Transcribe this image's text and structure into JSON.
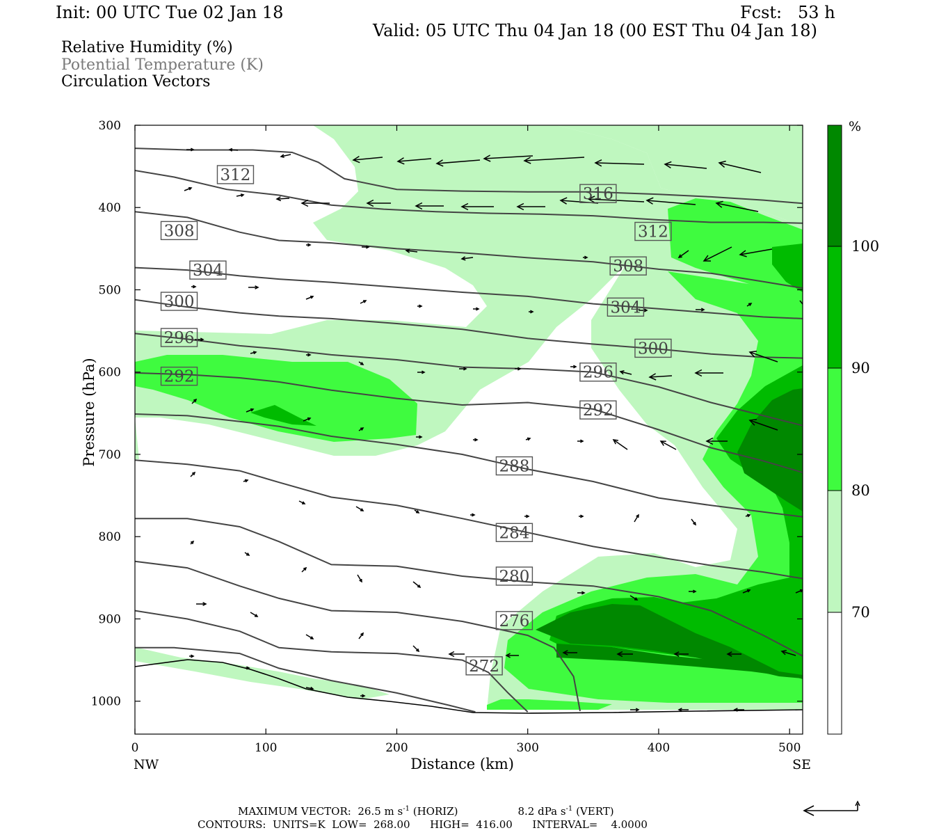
{
  "header": {
    "init": "Init: 00 UTC Tue 02 Jan 18",
    "fcst": "Fcst:   53 h",
    "valid": "Valid: 05 UTC Thu 04 Jan 18 (00 EST Thu 04 Jan 18)"
  },
  "legend_lines": {
    "rh": "Relative Humidity (%)",
    "theta": "Potential Temperature (K)",
    "vectors": "Circulation Vectors"
  },
  "footer": {
    "max_vector_prefix": "MAXIMUM VECTOR:  26.5 m s",
    "horiz_sup": "-1",
    "horiz_suffix": " (HORIZ)",
    "vert_prefix": "8.2 dPa s",
    "vert_sup": "-1",
    "vert_suffix": " (VERT)",
    "contours": "CONTOURS:  UNITS=K  LOW=  268.00      HIGH=  416.00      INTERVAL=    4.0000"
  },
  "colors": {
    "rh_70": "#bff7bf",
    "rh_80": "#3ffb3f",
    "rh_90": "#00bb00",
    "rh_100": "#008800",
    "contour": "#444444"
  },
  "chart_data": {
    "type": "cross-section",
    "xlabel": "Distance (km)",
    "ylabel": "Pressure (hPa)",
    "xlim": [
      0,
      510
    ],
    "ylim": [
      1040,
      300
    ],
    "x_ticks": [
      "0",
      "100",
      "200",
      "300",
      "400",
      "500"
    ],
    "y_ticks": [
      "300",
      "400",
      "500",
      "600",
      "700",
      "800",
      "900",
      "1000"
    ],
    "x_endpoints": {
      "left": "NW",
      "right": "SE"
    },
    "colorbar": {
      "unit": "%",
      "levels": [
        "70",
        "80",
        "90",
        "100"
      ]
    },
    "theta_contours": [
      {
        "label": "312",
        "points": [
          [
            0,
            355
          ],
          [
            30,
            363
          ],
          [
            70,
            378
          ],
          [
            110,
            385
          ],
          [
            150,
            397
          ],
          [
            190,
            402
          ],
          [
            230,
            405
          ],
          [
            270,
            407
          ],
          [
            310,
            408
          ],
          [
            350,
            410
          ],
          [
            400,
            415
          ],
          [
            440,
            418
          ],
          [
            480,
            418
          ],
          [
            510,
            419
          ]
        ],
        "label_at": [
          64,
          360
        ]
      },
      {
        "label": "316",
        "points": [
          [
            0,
            328
          ],
          [
            40,
            330
          ],
          [
            90,
            330
          ],
          [
            120,
            333
          ],
          [
            140,
            345
          ],
          [
            160,
            365
          ],
          [
            200,
            378
          ],
          [
            250,
            380
          ],
          [
            300,
            381
          ],
          [
            350,
            381
          ],
          [
            400,
            384
          ],
          [
            440,
            387
          ],
          [
            480,
            391
          ],
          [
            510,
            395
          ]
        ],
        "label_at": [
          341,
          383
        ]
      },
      {
        "label": "308",
        "points": [
          [
            0,
            405
          ],
          [
            40,
            412
          ],
          [
            80,
            430
          ],
          [
            110,
            440
          ],
          [
            150,
            443
          ],
          [
            200,
            450
          ],
          [
            250,
            455
          ],
          [
            300,
            461
          ],
          [
            350,
            466
          ],
          [
            400,
            475
          ],
          [
            440,
            480
          ],
          [
            480,
            490
          ],
          [
            510,
            498
          ]
        ],
        "label_at": [
          21,
          428
        ]
      },
      {
        "label": "308",
        "points": [
          [
            0,
            405
          ],
          [
            40,
            412
          ],
          [
            80,
            430
          ],
          [
            110,
            440
          ],
          [
            150,
            443
          ],
          [
            200,
            450
          ],
          [
            250,
            455
          ],
          [
            300,
            461
          ],
          [
            350,
            466
          ],
          [
            400,
            475
          ],
          [
            440,
            480
          ],
          [
            480,
            490
          ],
          [
            510,
            498
          ]
        ],
        "label_at": [
          364,
          471
        ]
      },
      {
        "label": "312",
        "points": [
          [
            0,
            405
          ],
          [
            0,
            405
          ]
        ],
        "label_at": [
          383,
          429
        ]
      },
      {
        "label": "304",
        "points": [
          [
            0,
            473
          ],
          [
            40,
            476
          ],
          [
            80,
            483
          ],
          [
            110,
            487
          ],
          [
            150,
            491
          ],
          [
            200,
            497
          ],
          [
            250,
            503
          ],
          [
            300,
            508
          ],
          [
            350,
            517
          ],
          [
            400,
            523
          ],
          [
            440,
            528
          ],
          [
            480,
            533
          ],
          [
            510,
            535
          ]
        ],
        "label_at": [
          43,
          476
        ]
      },
      {
        "label": "304",
        "points": [
          [
            0,
            473
          ],
          [
            0,
            473
          ]
        ],
        "label_at": [
          362,
          521
        ]
      },
      {
        "label": "300",
        "points": [
          [
            0,
            512
          ],
          [
            40,
            521
          ],
          [
            80,
            528
          ],
          [
            110,
            532
          ],
          [
            150,
            535
          ],
          [
            200,
            541
          ],
          [
            250,
            548
          ],
          [
            300,
            559
          ],
          [
            350,
            566
          ],
          [
            400,
            572
          ],
          [
            440,
            578
          ],
          [
            480,
            582
          ],
          [
            510,
            583
          ]
        ],
        "label_at": [
          21,
          514
        ]
      },
      {
        "label": "300",
        "points": [
          [
            0,
            512
          ],
          [
            0,
            512
          ]
        ],
        "label_at": [
          383,
          571
        ]
      },
      {
        "label": "296",
        "points": [
          [
            0,
            553
          ],
          [
            40,
            560
          ],
          [
            80,
            568
          ],
          [
            110,
            572
          ],
          [
            150,
            579
          ],
          [
            200,
            585
          ],
          [
            250,
            594
          ],
          [
            300,
            596
          ],
          [
            350,
            600
          ],
          [
            400,
            618
          ],
          [
            440,
            637
          ],
          [
            480,
            653
          ],
          [
            510,
            665
          ]
        ],
        "label_at": [
          21,
          558
        ]
      },
      {
        "label": "296",
        "points": [
          [
            0,
            553
          ],
          [
            0,
            553
          ]
        ],
        "label_at": [
          341,
          600
        ]
      },
      {
        "label": "292",
        "points": [
          [
            0,
            601
          ],
          [
            40,
            603
          ],
          [
            80,
            607
          ],
          [
            110,
            612
          ],
          [
            150,
            622
          ],
          [
            200,
            632
          ],
          [
            250,
            640
          ],
          [
            300,
            637
          ],
          [
            350,
            645
          ],
          [
            400,
            670
          ],
          [
            440,
            692
          ],
          [
            480,
            708
          ],
          [
            510,
            722
          ]
        ],
        "label_at": [
          21,
          605
        ]
      },
      {
        "label": "292",
        "points": [
          [
            0,
            601
          ],
          [
            0,
            601
          ]
        ],
        "label_at": [
          341,
          646
        ]
      },
      {
        "label": "288",
        "points": [
          [
            0,
            651
          ],
          [
            40,
            653
          ],
          [
            80,
            660
          ],
          [
            110,
            666
          ],
          [
            150,
            678
          ],
          [
            200,
            688
          ],
          [
            250,
            700
          ],
          [
            300,
            718
          ],
          [
            350,
            733
          ],
          [
            400,
            753
          ],
          [
            440,
            762
          ],
          [
            480,
            770
          ],
          [
            510,
            776
          ]
        ],
        "label_at": [
          277,
          714
        ]
      },
      {
        "label": "284",
        "points": [
          [
            0,
            707
          ],
          [
            40,
            712
          ],
          [
            80,
            720
          ],
          [
            110,
            734
          ],
          [
            150,
            752
          ],
          [
            200,
            762
          ],
          [
            250,
            778
          ],
          [
            300,
            795
          ],
          [
            350,
            812
          ],
          [
            400,
            825
          ],
          [
            440,
            835
          ],
          [
            480,
            843
          ],
          [
            510,
            851
          ]
        ],
        "label_at": [
          277,
          795
        ]
      },
      {
        "label": "280",
        "points": [
          [
            0,
            778
          ],
          [
            40,
            778
          ],
          [
            80,
            788
          ],
          [
            110,
            806
          ],
          [
            150,
            834
          ],
          [
            200,
            836
          ],
          [
            250,
            848
          ],
          [
            300,
            855
          ],
          [
            350,
            860
          ],
          [
            400,
            873
          ],
          [
            440,
            890
          ],
          [
            480,
            920
          ],
          [
            510,
            945
          ]
        ],
        "label_at": [
          277,
          848
        ]
      },
      {
        "label": "276",
        "points": [
          [
            0,
            830
          ],
          [
            40,
            838
          ],
          [
            80,
            860
          ],
          [
            110,
            875
          ],
          [
            150,
            890
          ],
          [
            200,
            892
          ],
          [
            250,
            903
          ],
          [
            300,
            920
          ],
          [
            320,
            935
          ],
          [
            335,
            970
          ],
          [
            340,
            1012
          ]
        ],
        "label_at": [
          277,
          902
        ]
      },
      {
        "label": "272",
        "points": [
          [
            0,
            890
          ],
          [
            40,
            900
          ],
          [
            80,
            915
          ],
          [
            110,
            935
          ],
          [
            150,
            940
          ],
          [
            200,
            942
          ],
          [
            250,
            950
          ],
          [
            270,
            965
          ],
          [
            285,
            990
          ],
          [
            300,
            1013
          ]
        ],
        "label_at": [
          254,
          957
        ]
      },
      {
        "label": "",
        "points": [
          [
            0,
            935
          ],
          [
            30,
            935
          ],
          [
            80,
            942
          ],
          [
            110,
            960
          ],
          [
            150,
            975
          ],
          [
            200,
            990
          ],
          [
            240,
            1005
          ],
          [
            260,
            1013
          ]
        ],
        "label_at": null
      }
    ]
  }
}
